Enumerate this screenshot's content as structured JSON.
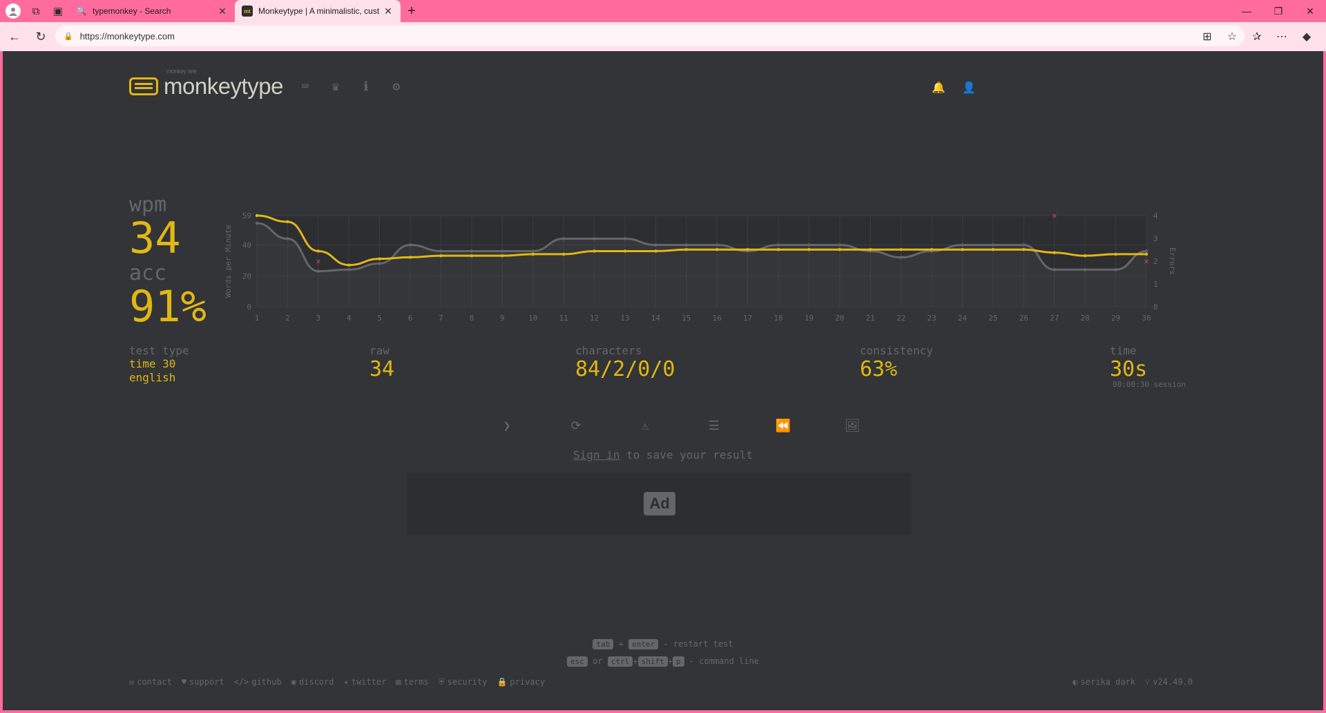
{
  "browser": {
    "tabs": [
      {
        "title": "typemonkey - Search",
        "active": false
      },
      {
        "title": "Monkeytype | A minimalistic, cust",
        "active": true
      }
    ],
    "url": "https://monkeytype.com"
  },
  "header": {
    "logo_top": "monkey see",
    "logo": "monkeytype"
  },
  "result": {
    "wpm_label": "wpm",
    "wpm": "34",
    "acc_label": "acc",
    "acc": "91%",
    "test_type_label": "test type",
    "test_type_line1": "time 30",
    "test_type_line2": "english",
    "raw_label": "raw",
    "raw": "34",
    "characters_label": "characters",
    "characters": "84/2/0/0",
    "consistency_label": "consistency",
    "consistency": "63%",
    "time_label": "time",
    "time": "30s",
    "session": "00:00:30 session"
  },
  "chart_data": {
    "type": "line",
    "x": [
      1,
      2,
      3,
      4,
      5,
      6,
      7,
      8,
      9,
      10,
      11,
      12,
      13,
      14,
      15,
      16,
      17,
      18,
      19,
      20,
      21,
      22,
      23,
      24,
      25,
      26,
      27,
      28,
      29,
      30
    ],
    "ylabel": "Words per Minute",
    "y2label": "Errors",
    "ylim": [
      0,
      59
    ],
    "yticks": [
      0,
      20,
      40,
      59
    ],
    "y2lim": [
      0,
      4
    ],
    "y2ticks": [
      0,
      1,
      2,
      3,
      4
    ],
    "series": [
      {
        "name": "wpm",
        "color": "#e2b714",
        "values": [
          59,
          55,
          36,
          27,
          31,
          32,
          33,
          33,
          33,
          34,
          34,
          36,
          36,
          36,
          37,
          37,
          37,
          37,
          37,
          37,
          37,
          37,
          37,
          37,
          37,
          37,
          35,
          33,
          34,
          34
        ]
      },
      {
        "name": "raw",
        "color": "#646669",
        "values": [
          54,
          44,
          23,
          24,
          28,
          40,
          36,
          36,
          36,
          36,
          44,
          44,
          44,
          40,
          40,
          40,
          36,
          40,
          40,
          40,
          36,
          32,
          36,
          40,
          40,
          40,
          24,
          24,
          24,
          36
        ]
      }
    ],
    "errors": [
      {
        "x": 3,
        "y": 2
      },
      {
        "x": 27,
        "y": 4
      },
      {
        "x": 30,
        "y": 2
      }
    ]
  },
  "sign_in": {
    "link": "Sign in",
    "rest": " to save your result"
  },
  "ad_label": "Ad",
  "shortcuts": {
    "k_tab": "tab",
    "plus1": "+",
    "k_enter": "enter",
    "restart": "- restart test",
    "k_esc": "esc",
    "or": "or",
    "k_ctrl": "ctrl",
    "plus2": "+",
    "k_shift": "shift",
    "plus3": "+",
    "k_p": "p",
    "command": "- command line"
  },
  "footer": {
    "contact": "contact",
    "support": "support",
    "github": "github",
    "discord": "discord",
    "twitter": "twitter",
    "terms": "terms",
    "security": "security",
    "privacy": "privacy",
    "theme": "serika dark",
    "version": "v24.49.0"
  }
}
